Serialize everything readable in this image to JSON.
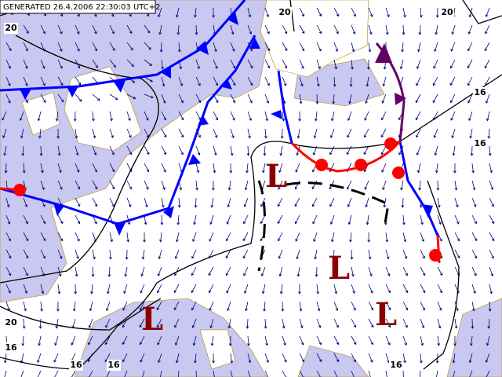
{
  "header": {
    "text": "GENERATED 26.4.2006 22:30:03 UTC+2"
  },
  "isobar_labels": [
    "20",
    "20",
    "20",
    "16",
    "16",
    "20",
    "16",
    "16",
    "16",
    "16"
  ],
  "pressure_centers": [
    "L",
    "L",
    "L",
    "L"
  ]
}
